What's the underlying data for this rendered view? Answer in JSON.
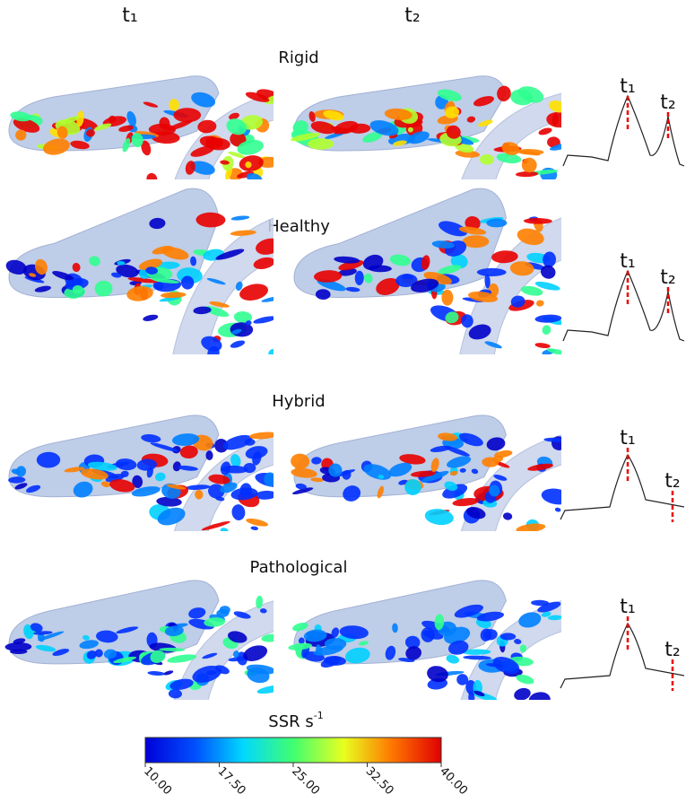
{
  "columns": [
    "t₁",
    "t₂"
  ],
  "rows": [
    {
      "label": "Rigid",
      "t1": "t₁",
      "t2": "t₂"
    },
    {
      "label": "Healthy",
      "t1": "t₁",
      "t2": "t₂"
    },
    {
      "label": "Hybrid",
      "t1": "t₁",
      "t2": "t₂"
    },
    {
      "label": "Pathological",
      "t1": "t₁",
      "t2": "t₂"
    }
  ],
  "colorbar": {
    "title": "SSR s",
    "title_superscript": "-1",
    "min": 10,
    "max": 40,
    "ticks": [
      {
        "value": 10,
        "label": "10.00"
      },
      {
        "value": 17.5,
        "label": "17.50"
      },
      {
        "value": 25,
        "label": "25.00"
      },
      {
        "value": 32.5,
        "label": "32.50"
      },
      {
        "value": 40,
        "label": "40.00"
      }
    ]
  }
}
